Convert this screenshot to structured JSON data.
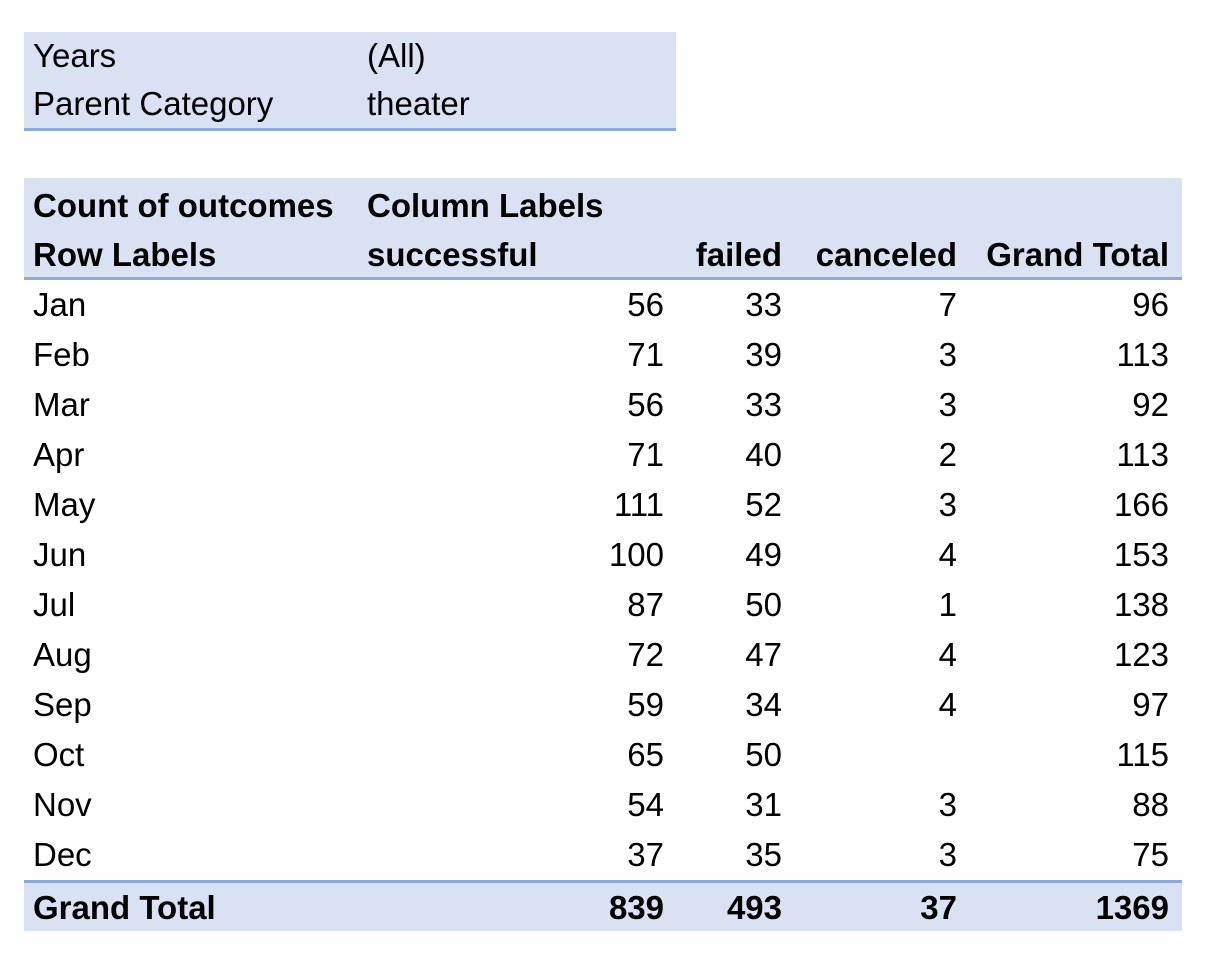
{
  "filters": [
    {
      "label": "Years",
      "value": "(All)"
    },
    {
      "label": "Parent Category",
      "value": "theater"
    }
  ],
  "pivot": {
    "value_field": "Count of outcomes",
    "column_labels": "Column Labels",
    "row_labels": "Row Labels",
    "columns": [
      "successful",
      "failed",
      "canceled",
      "Grand Total"
    ],
    "rows": [
      {
        "label": "Jan",
        "successful": "56",
        "failed": "33",
        "canceled": "7",
        "total": "96"
      },
      {
        "label": "Feb",
        "successful": "71",
        "failed": "39",
        "canceled": "3",
        "total": "113"
      },
      {
        "label": "Mar",
        "successful": "56",
        "failed": "33",
        "canceled": "3",
        "total": "92"
      },
      {
        "label": "Apr",
        "successful": "71",
        "failed": "40",
        "canceled": "2",
        "total": "113"
      },
      {
        "label": "May",
        "successful": "111",
        "failed": "52",
        "canceled": "3",
        "total": "166"
      },
      {
        "label": "Jun",
        "successful": "100",
        "failed": "49",
        "canceled": "4",
        "total": "153"
      },
      {
        "label": "Jul",
        "successful": "87",
        "failed": "50",
        "canceled": "1",
        "total": "138"
      },
      {
        "label": "Aug",
        "successful": "72",
        "failed": "47",
        "canceled": "4",
        "total": "123"
      },
      {
        "label": "Sep",
        "successful": "59",
        "failed": "34",
        "canceled": "4",
        "total": "97"
      },
      {
        "label": "Oct",
        "successful": "65",
        "failed": "50",
        "canceled": "",
        "total": "115"
      },
      {
        "label": "Nov",
        "successful": "54",
        "failed": "31",
        "canceled": "3",
        "total": "88"
      },
      {
        "label": "Dec",
        "successful": "37",
        "failed": "35",
        "canceled": "3",
        "total": "75"
      }
    ],
    "grand_total": {
      "label": "Grand Total",
      "successful": "839",
      "failed": "493",
      "canceled": "37",
      "total": "1369"
    }
  },
  "colors": {
    "header_fill": "#d9e1f2",
    "border_accent": "#8ea9db"
  }
}
